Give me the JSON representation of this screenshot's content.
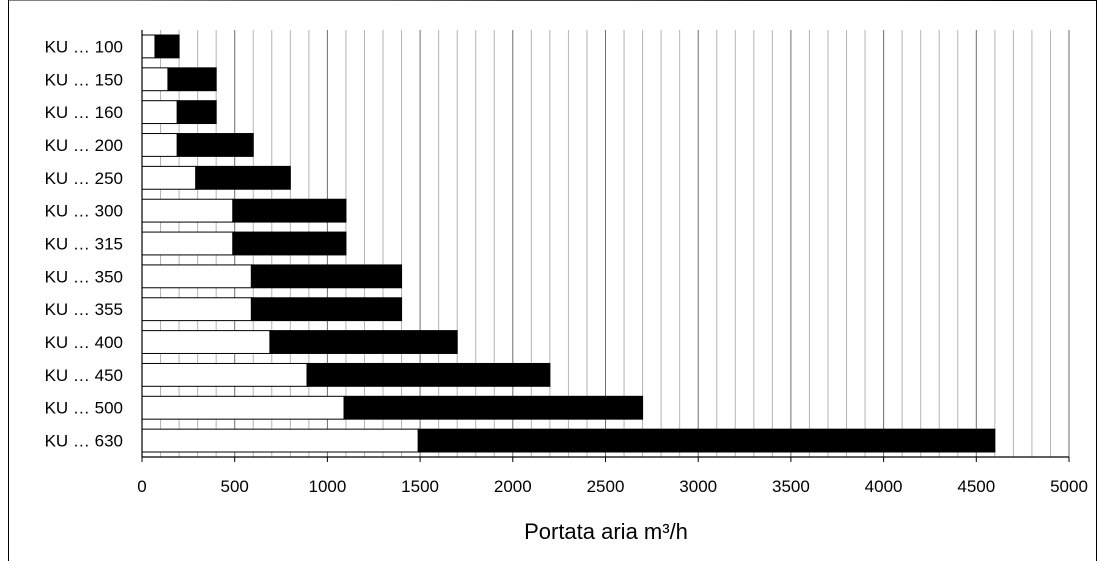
{
  "chart_data": {
    "type": "bar",
    "orientation": "horizontal",
    "stacked": true,
    "title": "",
    "xlabel": "Portata aria m³/h",
    "ylabel": "",
    "xlim": [
      0,
      5000
    ],
    "xticks": [
      0,
      500,
      1000,
      1500,
      2000,
      2500,
      3000,
      3500,
      4000,
      4500,
      5000
    ],
    "minor_step": 100,
    "grid": true,
    "legend": "none",
    "categories": [
      "KU … 100",
      "KU … 150",
      "KU … 160",
      "KU … 200",
      "KU … 250",
      "KU … 300",
      "KU … 315",
      "KU … 350",
      "KU … 355",
      "KU … 400",
      "KU … 450",
      "KU … 500",
      "KU … 630"
    ],
    "series": [
      {
        "values": [
          70,
          140,
          190,
          190,
          290,
          490,
          490,
          590,
          590,
          690,
          890,
          1090,
          1490
        ],
        "color": "#ffffff"
      },
      {
        "values": [
          130,
          260,
          210,
          410,
          510,
          610,
          610,
          810,
          810,
          1010,
          1310,
          1610,
          3110
        ],
        "color": "#000000"
      }
    ]
  }
}
